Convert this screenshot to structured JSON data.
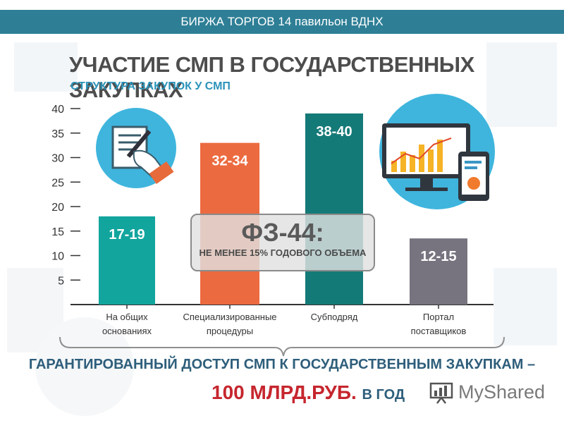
{
  "header": {
    "banner_text": "БИРЖА ТОРГОВ 14 павильон ВДНХ"
  },
  "title": "УЧАСТИЕ СМП В ГОСУДАРСТВЕННЫХ ЗАКУПКАХ",
  "subtitle": "СТРУКТУРА ЗАКУПОК У СМП",
  "chart_data": {
    "type": "bar",
    "categories": [
      [
        "На общих",
        "основаниях"
      ],
      [
        "Специализированные",
        "процедуры"
      ],
      [
        "Субподряд"
      ],
      [
        "Портал",
        "поставщиков"
      ]
    ],
    "values": [
      18,
      33,
      39,
      13.5
    ],
    "data_labels": [
      "17-19",
      "32-34",
      "38-40",
      "12-15"
    ],
    "colors": [
      "#12a59e",
      "#ec6a3f",
      "#147a78",
      "#77747f"
    ],
    "yticks": [
      5,
      10,
      15,
      20,
      25,
      30,
      35,
      40
    ],
    "ylim": [
      0,
      40
    ],
    "grid": false
  },
  "callout": {
    "title": "ФЗ-44:",
    "text": "НЕ МЕНЕЕ 15% ГОДОВОГО ОБЪЕМА"
  },
  "footer": {
    "line1": "ГАРАНТИРОВАННЫЙ ДОСТУП СМП К ГОСУДАРСТВЕННЫМ ЗАКУПКАМ –",
    "line2_main": "100 МЛРД.РУБ.",
    "line2_suffix": "В ГОД"
  },
  "logo": {
    "text": "MyShared"
  },
  "icons": [
    "document-signing-icon",
    "analytics-dashboard-icon"
  ]
}
